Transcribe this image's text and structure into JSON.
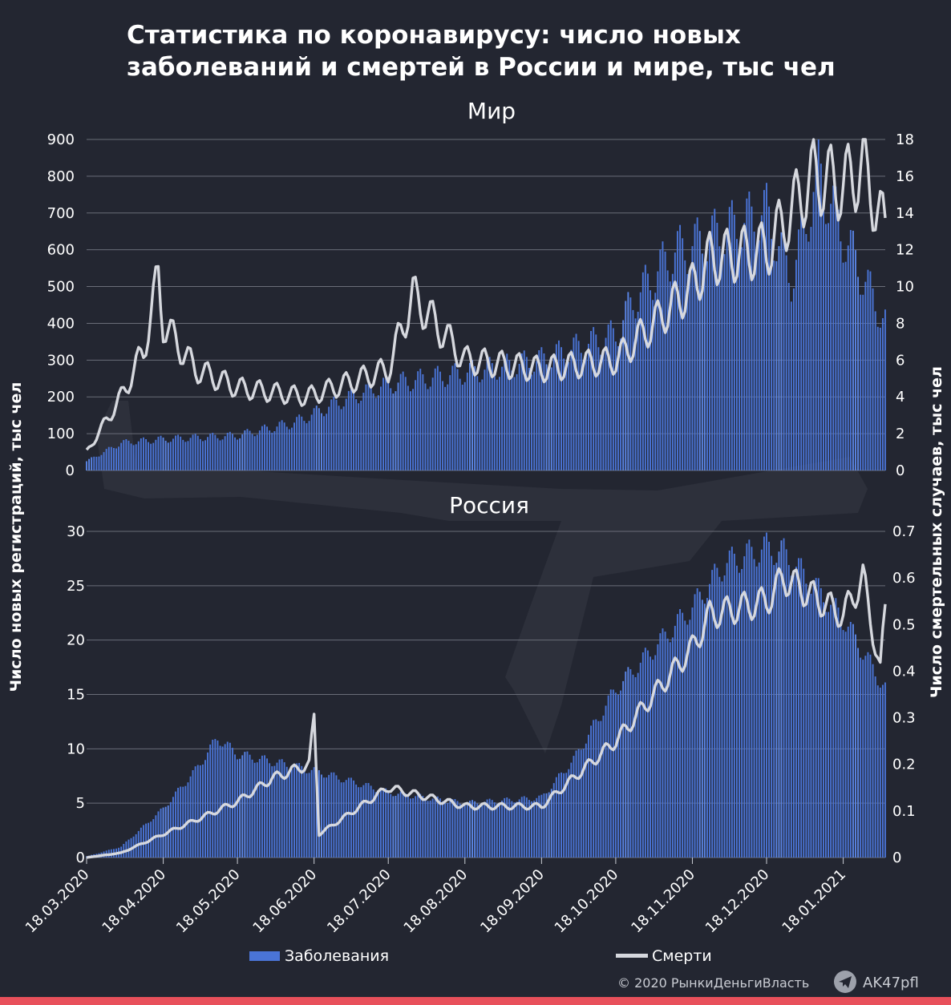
{
  "title_line1": "Статистика по коронавирусу: число новых",
  "title_line2": "заболеваний и смертей в России и мире, тыс чел",
  "y_left_label": "Число новых регистраций, тыс чел",
  "y_right_label": "Число смертельных случаев, тыс чел",
  "legend": {
    "cases": "Заболевания",
    "deaths": "Смерти"
  },
  "footer": {
    "copyright": "© 2020  РынкиДеньгиВласть",
    "channel": "AK47pfl"
  },
  "colors": {
    "background": "#232631",
    "bars": "#4a74d6",
    "line": "#d6d8de",
    "grid": "#6a6d78",
    "accent": "#e8505b"
  },
  "x_ticks": [
    "18.03.2020",
    "18.04.2020",
    "18.05.2020",
    "18.06.2020",
    "18.07.2020",
    "18.08.2020",
    "18.09.2020",
    "18.10.2020",
    "18.11.2020",
    "18.12.2020",
    "18.01.2021"
  ],
  "chart_data": [
    {
      "type": "bar+line",
      "title": "Мир",
      "x_range": [
        "18.03.2020",
        "04.02.2021"
      ],
      "ylim_left": [
        0,
        900
      ],
      "ylim_right": [
        0,
        18
      ],
      "y_left_ticks": [
        "0",
        "100",
        "200",
        "300",
        "400",
        "500",
        "600",
        "700",
        "800",
        "900"
      ],
      "y_right_ticks": [
        "0",
        "2",
        "4",
        "6",
        "8",
        "10",
        "12",
        "14",
        "16",
        "18"
      ],
      "grid": true,
      "cases_keypoints": [
        [
          "18.03.2020",
          25
        ],
        [
          "01.04.2020",
          75
        ],
        [
          "18.04.2020",
          85
        ],
        [
          "18.05.2020",
          95
        ],
        [
          "10.06.2020",
          130
        ],
        [
          "01.07.2020",
          195
        ],
        [
          "18.07.2020",
          235
        ],
        [
          "18.08.2020",
          265
        ],
        [
          "18.09.2020",
          300
        ],
        [
          "18.10.2020",
          370
        ],
        [
          "25.10.2020",
          460
        ],
        [
          "10.11.2020",
          590
        ],
        [
          "18.11.2020",
          610
        ],
        [
          "18.12.2020",
          700
        ],
        [
          "28.12.2020",
          520
        ],
        [
          "08.01.2021",
          810
        ],
        [
          "18.01.2021",
          640
        ],
        [
          "04.02.2021",
          400
        ]
      ],
      "deaths_keypoints": [
        [
          "18.03.2020",
          1.0
        ],
        [
          "01.04.2020",
          4.0
        ],
        [
          "10.04.2020",
          6.5
        ],
        [
          "16.04.2020",
          10.5
        ],
        [
          "18.04.2020",
          8.0
        ],
        [
          "01.05.2020",
          5.5
        ],
        [
          "18.05.2020",
          4.5
        ],
        [
          "15.06.2020",
          4.0
        ],
        [
          "18.07.2020",
          5.5
        ],
        [
          "28.07.2020",
          9.5
        ],
        [
          "18.08.2020",
          6.0
        ],
        [
          "18.09.2020",
          5.5
        ],
        [
          "18.10.2020",
          6.0
        ],
        [
          "18.11.2020",
          10.0
        ],
        [
          "25.11.2020",
          11.5
        ],
        [
          "18.12.2020",
          12.0
        ],
        [
          "06.01.2021",
          16.0
        ],
        [
          "18.01.2021",
          15.5
        ],
        [
          "26.01.2021",
          16.5
        ],
        [
          "04.02.2021",
          13.0
        ]
      ]
    },
    {
      "type": "bar+line",
      "title": "Россия",
      "x_range": [
        "18.03.2020",
        "04.02.2021"
      ],
      "ylim_left": [
        0,
        30
      ],
      "ylim_right": [
        0,
        0.7
      ],
      "y_left_ticks": [
        "0",
        "5",
        "10",
        "15",
        "20",
        "25",
        "30"
      ],
      "y_right_ticks": [
        "0",
        "0.1",
        "0.2",
        "0.3",
        "0.4",
        "0.5",
        "0.6",
        "0.7"
      ],
      "grid": true,
      "cases_keypoints": [
        [
          "18.03.2020",
          0.1
        ],
        [
          "01.04.2020",
          1.0
        ],
        [
          "18.04.2020",
          4.5
        ],
        [
          "01.05.2020",
          8.0
        ],
        [
          "10.05.2020",
          11.0
        ],
        [
          "18.05.2020",
          9.5
        ],
        [
          "18.06.2020",
          8.0
        ],
        [
          "18.07.2020",
          6.0
        ],
        [
          "18.08.2020",
          5.0
        ],
        [
          "18.09.2020",
          5.5
        ],
        [
          "01.10.2020",
          9.0
        ],
        [
          "18.10.2020",
          15.5
        ],
        [
          "18.11.2020",
          23.0
        ],
        [
          "01.12.2020",
          27.0
        ],
        [
          "18.12.2020",
          28.5
        ],
        [
          "25.12.2020",
          28.0
        ],
        [
          "18.01.2021",
          22.0
        ],
        [
          "04.02.2021",
          15.5
        ]
      ],
      "deaths_keypoints": [
        [
          "18.03.2020",
          0.0
        ],
        [
          "01.04.2020",
          0.01
        ],
        [
          "18.04.2020",
          0.05
        ],
        [
          "01.05.2020",
          0.08
        ],
        [
          "18.05.2020",
          0.12
        ],
        [
          "01.06.2020",
          0.17
        ],
        [
          "16.06.2020",
          0.2
        ],
        [
          "18.06.2020",
          0.3
        ],
        [
          "20.06.2020",
          0.05
        ],
        [
          "18.07.2020",
          0.15
        ],
        [
          "18.08.2020",
          0.11
        ],
        [
          "18.09.2020",
          0.11
        ],
        [
          "18.10.2020",
          0.25
        ],
        [
          "18.11.2020",
          0.45
        ],
        [
          "25.11.2020",
          0.52
        ],
        [
          "18.12.2020",
          0.55
        ],
        [
          "25.12.2020",
          0.6
        ],
        [
          "18.01.2021",
          0.52
        ],
        [
          "26.01.2021",
          0.6
        ],
        [
          "02.02.2021",
          0.4
        ],
        [
          "04.02.2021",
          0.53
        ]
      ]
    }
  ]
}
